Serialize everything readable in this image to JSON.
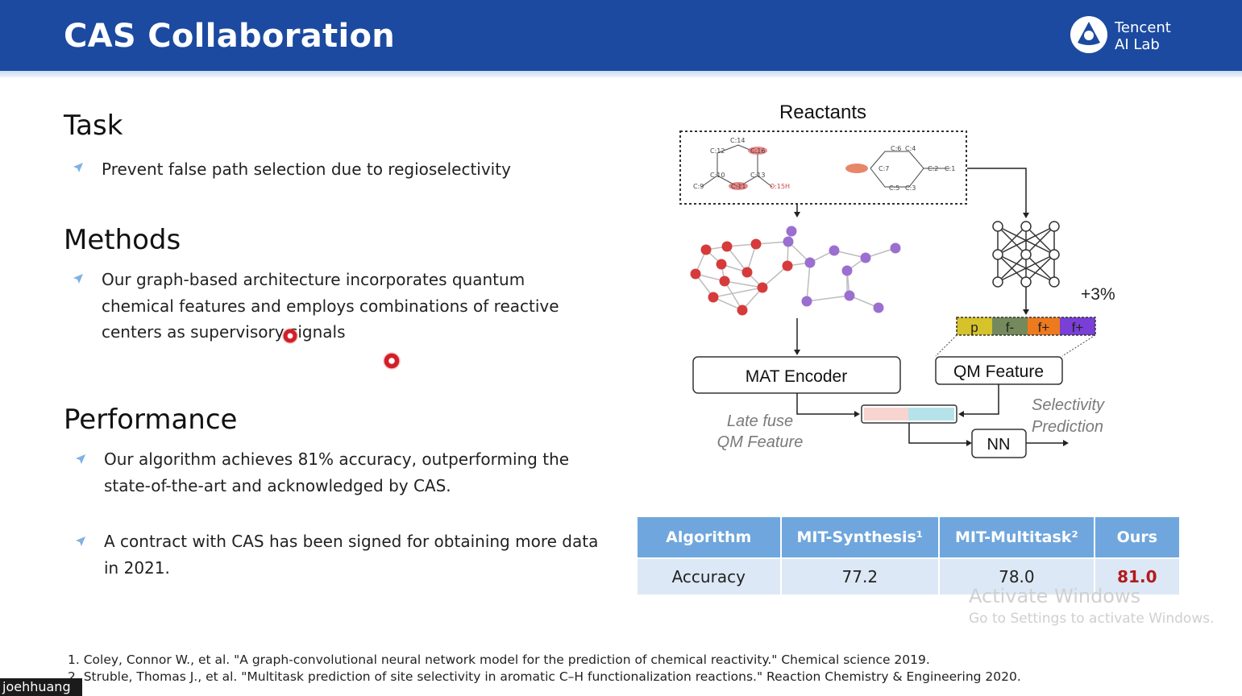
{
  "header": {
    "title": "CAS Collaboration",
    "logo_line1": "Tencent",
    "logo_line2": "AI Lab",
    "bg_color": "#1c4aa0"
  },
  "task": {
    "title": "Task",
    "bullets": [
      "Prevent false path selection due to regioselectivity"
    ]
  },
  "methods": {
    "title": "Methods",
    "bullets": [
      {
        "lines": [
          "Our graph-based architecture incorporates quantum",
          "chemical features and employs combinations of reactive",
          "centers as supervisory signals"
        ]
      }
    ]
  },
  "performance": {
    "title": "Performance",
    "bullets": [
      {
        "lines": [
          "Our algorithm achieves 81% accuracy, outperforming the",
          "state-of-the-art and acknowledged by CAS."
        ]
      },
      {
        "lines": [
          "A contract with CAS has been signed for obtaining more data",
          "in 2021."
        ]
      }
    ]
  },
  "diagram": {
    "reactants_label": "Reactants",
    "atom_labels": [
      "C:14",
      "C:12",
      "C:16",
      "C:10",
      "C:13",
      "C:9",
      "C:11",
      "O:15H",
      "C:6",
      "C:4",
      "C:7",
      "C:2",
      "C:1",
      "C:5",
      "C:3"
    ],
    "improvement": "+3%",
    "feature_cells": [
      "p",
      "f-",
      "f+",
      "f+"
    ],
    "mat_encoder": "MAT Encoder",
    "qm_feature": "QM Feature",
    "late_fuse_line1": "Late fuse",
    "late_fuse_line2": "QM Feature",
    "selectivity_line1": "Selectivity",
    "selectivity_line2": "Prediction",
    "nn_label": "NN"
  },
  "results_table": {
    "headers": [
      "Algorithm",
      "MIT-Synthesis¹",
      "MIT-Multitask²",
      "Ours"
    ],
    "rows": [
      [
        "Accuracy",
        "77.2",
        "78.0",
        "81.0"
      ]
    ],
    "header_color": "#6fa6dd",
    "row_color": "#dce8f5",
    "highlight_color": "#b31b1b"
  },
  "watermark": {
    "line1": "Activate Windows",
    "line2": "Go to Settings to activate Windows."
  },
  "references": [
    "1.  Coley, Connor W., et al. \"A graph-convolutional neural network model for the prediction of chemical reactivity.\" Chemical science 2019.",
    "2.  Struble, Thomas J., et al. \"Multitask prediction of site selectivity in aromatic C–H functionalization reactions.\" Reaction Chemistry & Engineering 2020."
  ],
  "presenter_name": "joehhuang",
  "icons": [
    "tencent-ai-lab-logo-icon",
    "bullet-arrow-icon",
    "laser-pointer-icon",
    "neural-network-icon"
  ]
}
